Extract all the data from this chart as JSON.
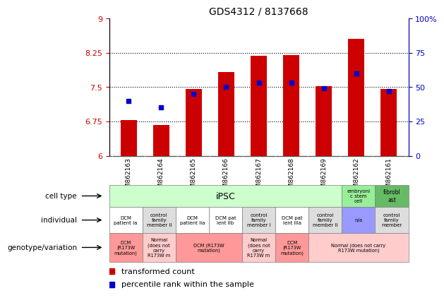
{
  "title": "GDS4312 / 8137668",
  "samples": [
    "GSM862163",
    "GSM862164",
    "GSM862165",
    "GSM862166",
    "GSM862167",
    "GSM862168",
    "GSM862169",
    "GSM862162",
    "GSM862161"
  ],
  "transformed_count": [
    6.78,
    6.67,
    7.45,
    7.82,
    8.18,
    8.2,
    7.52,
    8.55,
    7.45
  ],
  "percentile_rank": [
    40,
    35,
    45,
    50,
    53,
    53,
    49,
    60,
    47
  ],
  "ylim_left": [
    6.0,
    9.0
  ],
  "ylim_right": [
    0,
    100
  ],
  "yticks_left": [
    6.0,
    6.75,
    7.5,
    8.25,
    9.0
  ],
  "yticks_right": [
    0,
    25,
    50,
    75,
    100
  ],
  "hline_values": [
    6.75,
    7.5,
    8.25
  ],
  "bar_color": "#cc0000",
  "dot_color": "#0000cc",
  "bar_bottom": 6.0,
  "cell_type_row": {
    "iPSC_color": "#ccffcc",
    "embryonic_color": "#99ee99",
    "fibroblast_color": "#66bb66",
    "iPSC_label": "iPSC",
    "embryonic_label": "embryoni\nc stem\ncell",
    "fibroblast_label": "fibrobl\nast"
  },
  "individual_row": {
    "labels": [
      "DCM\npatient Ia",
      "control\nfamily\nmember II",
      "DCM\npatient IIa",
      "DCM pat\nient IIb",
      "control\nfamily\nmember I",
      "DCM pat\nient IIIa",
      "control\nfamily\nmember II",
      "n/a",
      "control\nfamily\nmember"
    ],
    "colors": [
      "#ffffff",
      "#dddddd",
      "#ffffff",
      "#ffffff",
      "#dddddd",
      "#ffffff",
      "#dddddd",
      "#9999ff",
      "#dddddd"
    ]
  },
  "genotype_row": {
    "groups": [
      {
        "span": [
          0,
          1
        ],
        "label": "DCM\n(R173W\nmutation)",
        "color": "#ff9999"
      },
      {
        "span": [
          1,
          2
        ],
        "label": "Normal\n(does not\ncarry\nR173W m",
        "color": "#ffcccc"
      },
      {
        "span": [
          2,
          4
        ],
        "label": "DCM (R173W\nmutation)",
        "color": "#ff9999"
      },
      {
        "span": [
          4,
          5
        ],
        "label": "Normal\n(does not\ncarry\nR173W m",
        "color": "#ffcccc"
      },
      {
        "span": [
          5,
          6
        ],
        "label": "DCM\n(R173W\nmutation)",
        "color": "#ff9999"
      },
      {
        "span": [
          6,
          9
        ],
        "label": "Normal (does not carry\nR173W mutation)",
        "color": "#ffcccc"
      }
    ]
  },
  "row_labels": [
    "cell type",
    "individual",
    "genotype/variation"
  ],
  "legend_items": [
    {
      "label": "transformed count",
      "color": "#cc0000"
    },
    {
      "label": "percentile rank within the sample",
      "color": "#0000cc"
    }
  ]
}
